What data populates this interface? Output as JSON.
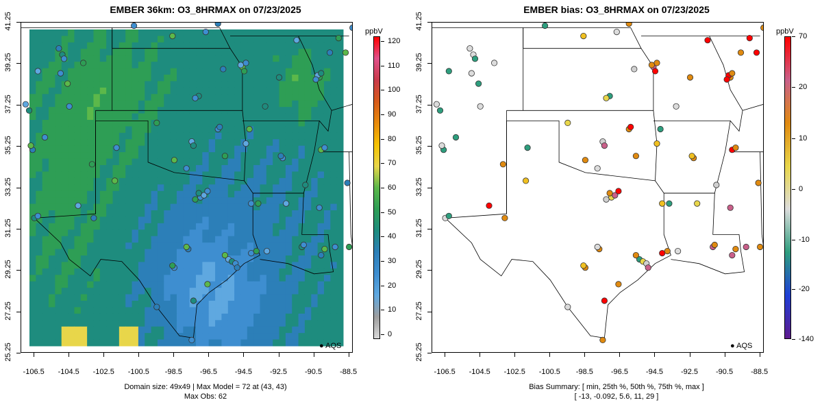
{
  "left": {
    "title": "EMBER 36km: O3_8HRMAX on 07/23/2025",
    "footer_line1": "Domain size: 49x49 | Max Model = 72 at (43, 43)",
    "footer_line2": "Max Obs: 62",
    "colorbar": {
      "unit": "ppbV",
      "ticks": [
        {
          "label": "120",
          "value": 120
        },
        {
          "label": "110",
          "value": 110
        },
        {
          "label": "100",
          "value": 100
        },
        {
          "label": "90",
          "value": 90
        },
        {
          "label": "80",
          "value": 80
        },
        {
          "label": "70",
          "value": 70
        },
        {
          "label": "60",
          "value": 60
        },
        {
          "label": "50",
          "value": 50
        },
        {
          "label": "40",
          "value": 40
        },
        {
          "label": "30",
          "value": 30
        },
        {
          "label": "20",
          "value": 20
        },
        {
          "label": "10",
          "value": 10
        },
        {
          "label": "0",
          "value": 0
        }
      ]
    },
    "legend": "AQS"
  },
  "right": {
    "title": "EMBER bias: O3_8HRMAX on 07/23/2025",
    "footer_line1": "Bias Summary: [ min, 25th %, 50th %, 75th %, max ]",
    "footer_line2": "[ -13,   -0.092,   5.6,   11,   29 ]",
    "colorbar": {
      "unit": "ppbV",
      "ticks": [
        {
          "label": "70",
          "value": 70
        },
        {
          "label": "20",
          "value": 20
        },
        {
          "label": "10",
          "value": 10
        },
        {
          "label": "0",
          "value": 0
        },
        {
          "label": "-10",
          "value": -10
        },
        {
          "label": "-20",
          "value": -20
        },
        {
          "label": "-140",
          "value": -140
        }
      ]
    },
    "legend": "AQS"
  },
  "axes": {
    "y_ticks": [
      "41.25",
      "39.25",
      "37.25",
      "35.25",
      "33.25",
      "31.25",
      "29.25",
      "27.25",
      "25.25"
    ],
    "x_ticks": [
      "-106.5",
      "-104.5",
      "-102.5",
      "-100.5",
      "-98.5",
      "-96.5",
      "-94.5",
      "-92.5",
      "-90.5",
      "-88.5"
    ],
    "lat_range": [
      25.25,
      41.25
    ],
    "lon_range": [
      -107.25,
      -88.25
    ]
  },
  "colors": {
    "model_scale": [
      "#d9d9d9",
      "#9e9e9e",
      "#5fa8e0",
      "#3e8ed0",
      "#2c7fb8",
      "#1e8c7e",
      "#2e9e55",
      "#5cb84a",
      "#e8d64a",
      "#f5c100",
      "#e88a0a",
      "#d65a1a",
      "#c93a4a",
      "#e0508a",
      "#ff0000"
    ],
    "bias_scale": [
      "#5e1a8e",
      "#1e3fd6",
      "#2e9e7e",
      "#dcdcdc",
      "#e8d64a",
      "#e08a10",
      "#c9608a",
      "#ff0000"
    ]
  }
}
